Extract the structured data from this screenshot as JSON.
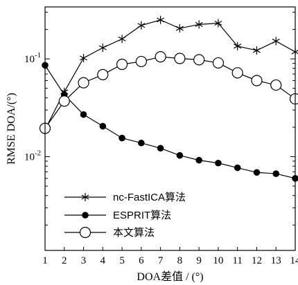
{
  "chart_data": {
    "type": "line",
    "x": [
      1,
      2,
      3,
      4,
      5,
      6,
      7,
      8,
      9,
      10,
      11,
      12,
      13,
      14
    ],
    "xticks": [
      "1",
      "2",
      "3",
      "4",
      "5",
      "6",
      "7",
      "8",
      "9",
      "10",
      "11",
      "12",
      "13",
      "14"
    ],
    "xlim": [
      1,
      14
    ],
    "ylim": [
      0.0011,
      0.34
    ],
    "yscale": "log",
    "yticks": [
      {
        "value": 0.01,
        "base": "10",
        "exp": "-2"
      },
      {
        "value": 0.1,
        "base": "10",
        "exp": "-1"
      }
    ],
    "xlabel": "DOA差值 / (°)",
    "ylabel": "RMSE DOA/(°)",
    "legend_position": "bottom-left",
    "series": [
      {
        "name": "nc-FastICA算法",
        "marker": "asterisk",
        "values": [
          0.019,
          0.046,
          0.102,
          0.13,
          0.16,
          0.22,
          0.25,
          0.205,
          0.225,
          0.232,
          0.135,
          0.122,
          0.152,
          0.118
        ]
      },
      {
        "name": "ESPRIT算法",
        "marker": "filled-circle",
        "values": [
          0.086,
          0.043,
          0.027,
          0.0205,
          0.0155,
          0.0138,
          0.0122,
          0.0103,
          0.0092,
          0.0086,
          0.0077,
          0.0069,
          0.0067,
          0.006
        ]
      },
      {
        "name": "本文算法",
        "marker": "open-circle",
        "values": [
          0.0195,
          0.037,
          0.057,
          0.069,
          0.088,
          0.094,
          0.105,
          0.101,
          0.098,
          0.091,
          0.072,
          0.06,
          0.054,
          0.039
        ]
      }
    ]
  }
}
